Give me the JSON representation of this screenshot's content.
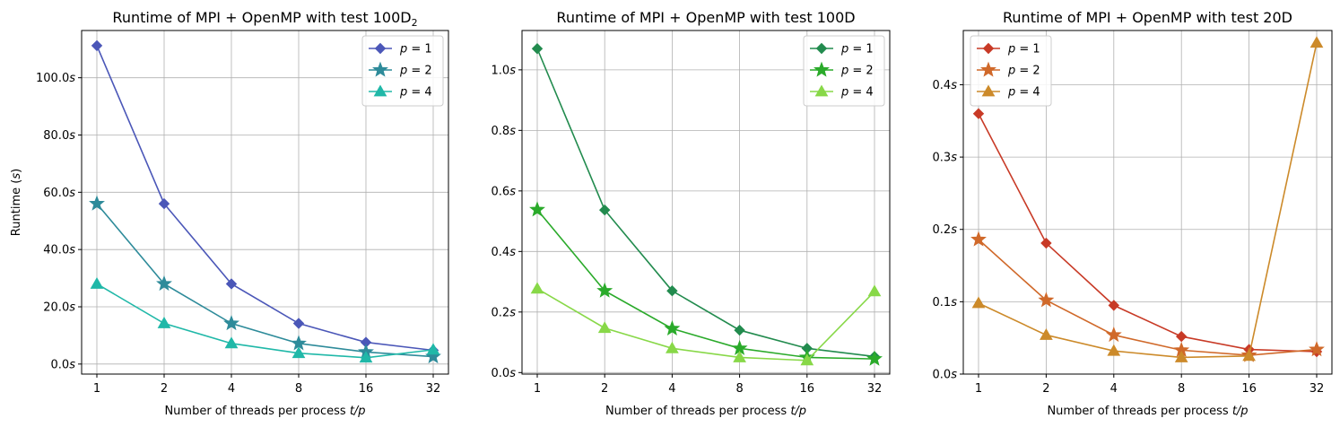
{
  "chart_data": [
    {
      "type": "line",
      "title": "Runtime of MPI + OpenMP with test 100D",
      "title_subscript": "2",
      "xlabel": "Number of threads per process t/p",
      "ylabel": "Runtime (s)",
      "x": [
        1,
        2,
        4,
        8,
        16,
        32
      ],
      "x_tick_labels": [
        "1",
        "2",
        "4",
        "8",
        "16",
        "32"
      ],
      "x_scale": "log2",
      "y_ticks": [
        0,
        20,
        40,
        60,
        80,
        100
      ],
      "y_tick_labels": [
        "0.0s",
        "20.0s",
        "40.0s",
        "60.0s",
        "80.0s",
        "100.0s"
      ],
      "ylim": [
        -3.5,
        116.5
      ],
      "grid": true,
      "legend_position": "top-right",
      "series": [
        {
          "name": "p = 1",
          "marker": "diamond",
          "color": "#4b57b8",
          "values": [
            111.2,
            56.0,
            28.0,
            14.2,
            7.6,
            4.8
          ]
        },
        {
          "name": "p = 2",
          "marker": "star",
          "color": "#2e8b9a",
          "values": [
            56.0,
            28.0,
            14.2,
            7.2,
            4.2,
            2.6
          ]
        },
        {
          "name": "p = 4",
          "marker": "triangle",
          "color": "#20b8a8",
          "values": [
            28.0,
            14.2,
            7.2,
            3.8,
            2.2,
            5.0
          ]
        }
      ]
    },
    {
      "type": "line",
      "title": "Runtime of MPI + OpenMP with test 100D",
      "xlabel": "Number of threads per process t/p",
      "ylabel": "",
      "x": [
        1,
        2,
        4,
        8,
        16,
        32
      ],
      "x_tick_labels": [
        "1",
        "2",
        "4",
        "8",
        "16",
        "32"
      ],
      "x_scale": "log2",
      "y_ticks": [
        0,
        0.2,
        0.4,
        0.6,
        0.8,
        1.0
      ],
      "y_tick_labels": [
        "0.0s",
        "0.2s",
        "0.4s",
        "0.6s",
        "0.8s",
        "1.0s"
      ],
      "ylim": [
        -0.005,
        1.13
      ],
      "grid": true,
      "legend_position": "top-right",
      "series": [
        {
          "name": "p = 1",
          "marker": "diamond",
          "color": "#228b4e",
          "values": [
            1.07,
            0.537,
            0.27,
            0.14,
            0.08,
            0.053
          ]
        },
        {
          "name": "p = 2",
          "marker": "star",
          "color": "#2aaa2a",
          "values": [
            0.538,
            0.27,
            0.145,
            0.08,
            0.05,
            0.045
          ]
        },
        {
          "name": "p = 4",
          "marker": "triangle",
          "color": "#88d848",
          "values": [
            0.277,
            0.147,
            0.08,
            0.05,
            0.04,
            0.268
          ]
        }
      ]
    },
    {
      "type": "line",
      "title": "Runtime of MPI + OpenMP with test 20D",
      "xlabel": "Number of threads per process t/p",
      "ylabel": "",
      "x": [
        1,
        2,
        4,
        8,
        16,
        32
      ],
      "x_tick_labels": [
        "1",
        "2",
        "4",
        "8",
        "16",
        "32"
      ],
      "x_scale": "log2",
      "y_ticks": [
        0,
        0.1,
        0.2,
        0.3,
        0.4
      ],
      "y_tick_labels": [
        "0.0s",
        "0.1s",
        "0.2s",
        "0.3s",
        "0.4s"
      ],
      "ylim": [
        0,
        0.475
      ],
      "grid": true,
      "legend_position": "top-left",
      "series": [
        {
          "name": "p = 1",
          "marker": "diamond",
          "color": "#c83a26",
          "values": [
            0.36,
            0.181,
            0.095,
            0.052,
            0.034,
            0.031
          ]
        },
        {
          "name": "p = 2",
          "marker": "star",
          "color": "#d0692a",
          "values": [
            0.186,
            0.102,
            0.054,
            0.033,
            0.026,
            0.034
          ]
        },
        {
          "name": "p = 4",
          "marker": "triangle",
          "color": "#cc8a2a",
          "values": [
            0.098,
            0.054,
            0.032,
            0.023,
            0.025,
            0.458
          ]
        }
      ]
    }
  ]
}
